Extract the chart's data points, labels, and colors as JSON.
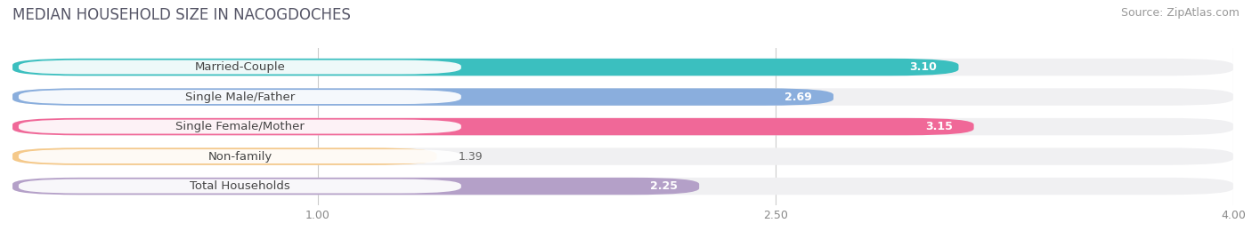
{
  "title": "MEDIAN HOUSEHOLD SIZE IN NACOGDOCHES",
  "source": "Source: ZipAtlas.com",
  "categories": [
    "Married-Couple",
    "Single Male/Father",
    "Single Female/Mother",
    "Non-family",
    "Total Households"
  ],
  "values": [
    3.1,
    2.69,
    3.15,
    1.39,
    2.25
  ],
  "bar_colors": [
    "#3bbfbf",
    "#8aaedd",
    "#f06898",
    "#f5c98a",
    "#b4a0c8"
  ],
  "label_colors": [
    "#ffffff",
    "#ffffff",
    "#ffffff",
    "#555555",
    "#555555"
  ],
  "xlim": [
    0.0,
    4.0
  ],
  "xticks": [
    1.0,
    2.5,
    4.0
  ],
  "xmin": 0.0,
  "bg_color": "#ffffff",
  "bar_bg_color": "#f0f0f2",
  "title_fontsize": 12,
  "source_fontsize": 9,
  "label_fontsize": 9.5,
  "value_fontsize": 9
}
